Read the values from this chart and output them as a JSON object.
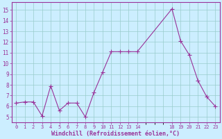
{
  "x": [
    0,
    1,
    2,
    3,
    4,
    5,
    6,
    7,
    8,
    9,
    10,
    11,
    12,
    13,
    14,
    18,
    19,
    20,
    21,
    22,
    23
  ],
  "y": [
    6.3,
    6.4,
    6.4,
    5.1,
    7.9,
    5.6,
    6.3,
    6.3,
    5.0,
    7.3,
    9.2,
    11.1,
    11.1,
    11.1,
    11.1,
    15.1,
    12.1,
    10.8,
    8.4,
    6.9,
    6.0
  ],
  "line_color": "#993399",
  "marker": "+",
  "markersize": 4,
  "linewidth": 0.8,
  "bg_color": "#cceeff",
  "grid_color": "#99cccc",
  "xlabel": "Windchill (Refroidissement éolien,°C)",
  "xlabel_color": "#993399",
  "tick_color": "#993399",
  "spine_color": "#993399",
  "ylim": [
    4.5,
    15.7
  ],
  "xlim": [
    -0.5,
    23.5
  ],
  "yticks": [
    5,
    6,
    7,
    8,
    9,
    10,
    11,
    12,
    13,
    14,
    15
  ],
  "xtick_positions": [
    0,
    1,
    2,
    3,
    4,
    5,
    6,
    7,
    8,
    9,
    10,
    11,
    12,
    13,
    14,
    18,
    19,
    20,
    21,
    22,
    23
  ],
  "xtick_labels": [
    "0",
    "1",
    "2",
    "3",
    "4",
    "5",
    "6",
    "7",
    "8",
    "9",
    "10",
    "11",
    "12",
    "13",
    "14",
    "18",
    "19",
    "20",
    "21",
    "22",
    "23"
  ],
  "figsize": [
    3.2,
    2.0
  ],
  "dpi": 100
}
